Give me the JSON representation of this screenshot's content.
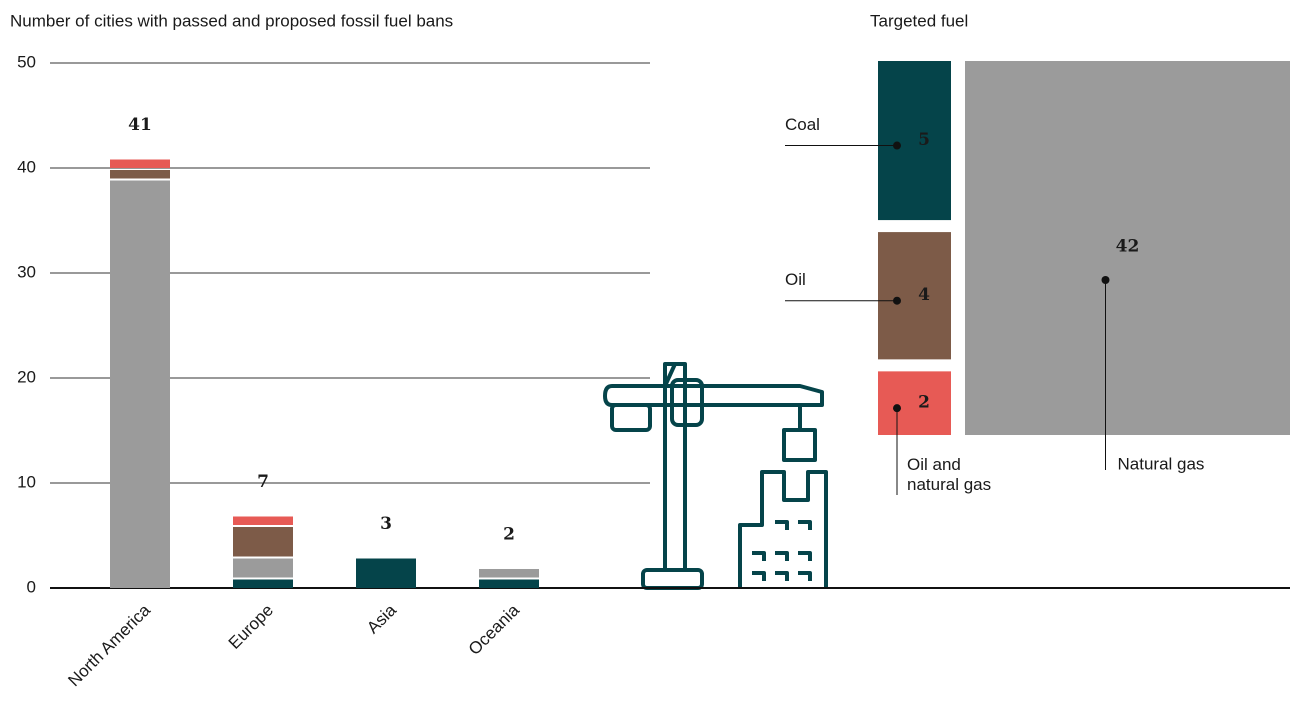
{
  "chart_data": [
    {
      "type": "stacked_bar",
      "title": "Number of cities with passed and proposed fossil fuel bans",
      "categories": [
        "North America",
        "Europe",
        "Asia",
        "Oceania"
      ],
      "series": [
        {
          "color": "#05444a",
          "values": [
            0,
            1,
            3,
            1
          ]
        },
        {
          "color": "#9b9b9b",
          "values": [
            39,
            2,
            0,
            1
          ]
        },
        {
          "color": "#7d5b48",
          "values": [
            1,
            3,
            0,
            0
          ]
        },
        {
          "color": "#e75a55",
          "values": [
            1,
            1,
            0,
            0
          ]
        }
      ],
      "totals": [
        41,
        7,
        3,
        2
      ],
      "ylim": [
        0,
        50
      ],
      "yticks": [
        0,
        10,
        20,
        30,
        40,
        50
      ],
      "grid": true
    },
    {
      "type": "treemap",
      "title": "Targeted fuel",
      "categories": [
        "Coal",
        "Oil",
        "Oil and natural gas",
        "Natural gas"
      ],
      "values": [
        5,
        4,
        2,
        42
      ],
      "colors": [
        "#05444a",
        "#7d5b48",
        "#e75a55",
        "#9b9b9b"
      ]
    }
  ]
}
